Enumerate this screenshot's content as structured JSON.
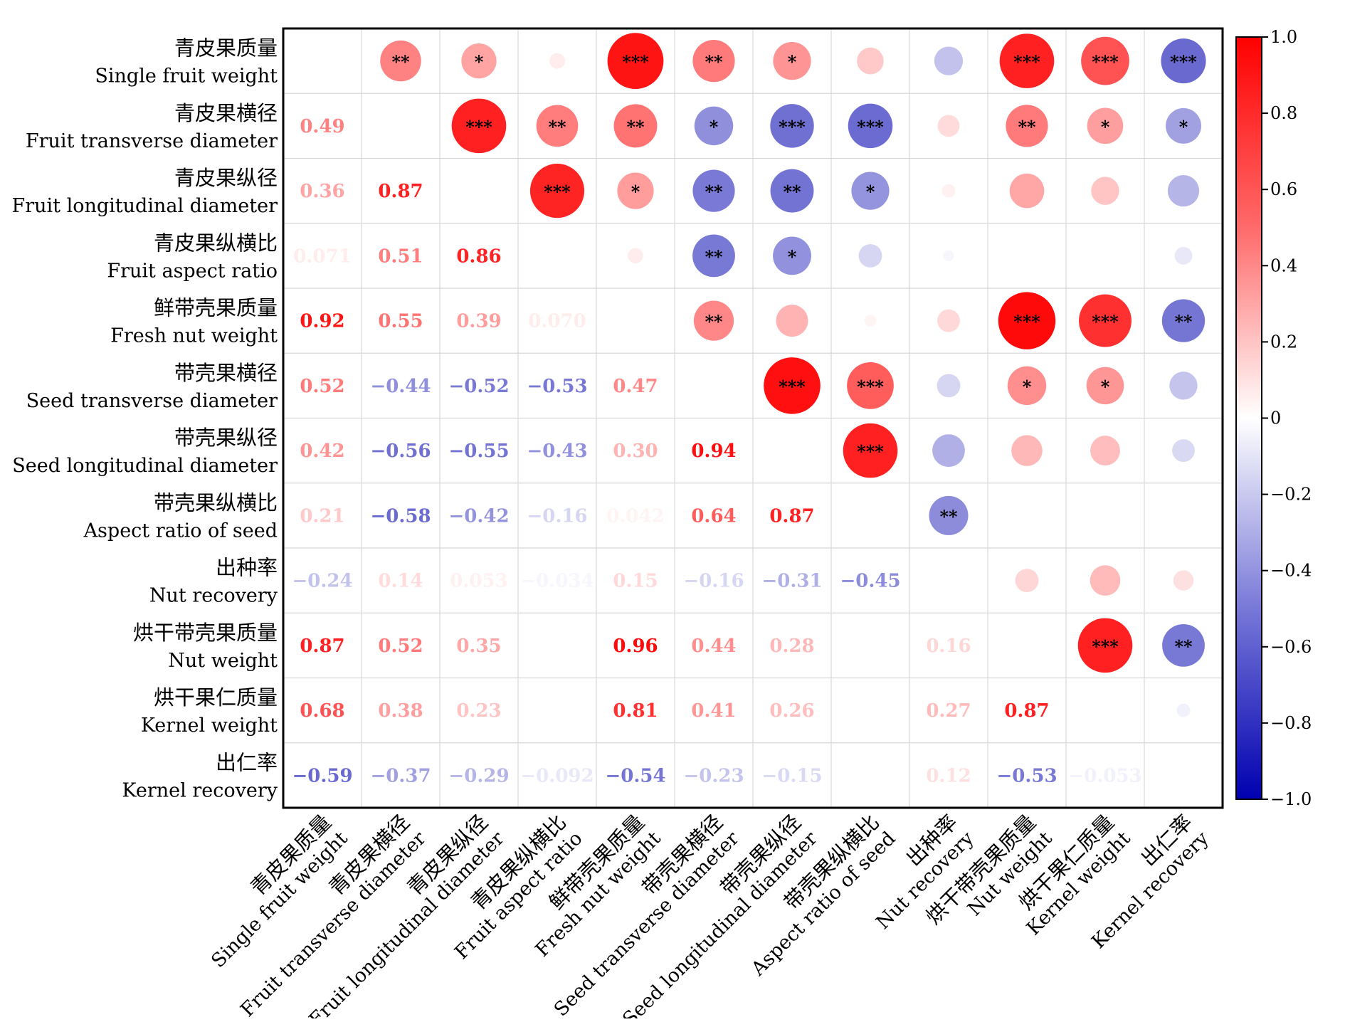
{
  "chart_data": {
    "type": "heatmap",
    "variables": [
      {
        "cn": "青皮果质量",
        "en": "Single fruit weight"
      },
      {
        "cn": "青皮果横径",
        "en": "Fruit transverse diameter"
      },
      {
        "cn": "青皮果纵径",
        "en": "Fruit longitudinal diameter"
      },
      {
        "cn": "青皮果纵横比",
        "en": "Fruit aspect ratio"
      },
      {
        "cn": "鲜带壳果质量",
        "en": "Fresh nut weight"
      },
      {
        "cn": "带壳果横径",
        "en": "Seed transverse diameter"
      },
      {
        "cn": "带壳果纵径",
        "en": "Seed longitudinal diameter"
      },
      {
        "cn": "带壳果纵横比",
        "en": "Aspect ratio of seed"
      },
      {
        "cn": "出种率",
        "en": "Nut recovery"
      },
      {
        "cn": "烘干带壳果质量",
        "en": "Nut weight"
      },
      {
        "cn": "烘干果仁质量",
        "en": "Kernel weight"
      },
      {
        "cn": "出仁率",
        "en": "Kernel recovery"
      }
    ],
    "lower_labels": [
      [],
      [
        "0.49"
      ],
      [
        "0.36",
        "0.87"
      ],
      [
        "0.071",
        "0.51",
        "0.86"
      ],
      [
        "0.92",
        "0.55",
        "0.39",
        "0.070"
      ],
      [
        "0.52",
        "−0.44",
        "−0.52",
        "−0.53",
        "0.47"
      ],
      [
        "0.42",
        "−0.56",
        "−0.55",
        "−0.43",
        "0.30",
        "0.94"
      ],
      [
        "0.21",
        "−0.58",
        "−0.42",
        "−0.16",
        "0.042",
        "0.64",
        "0.87"
      ],
      [
        "−0.24",
        "0.14",
        "0.053",
        "−0.034",
        "0.15",
        "−0.16",
        "−0.31",
        "−0.45"
      ],
      [
        "0.87",
        "0.52",
        "0.35",
        "",
        "0.96",
        "0.44",
        "0.28",
        "",
        "0.16"
      ],
      [
        "0.68",
        "0.38",
        "0.23",
        "",
        "0.81",
        "0.41",
        "0.26",
        "",
        "0.27",
        "0.87"
      ],
      [
        "−0.59",
        "−0.37",
        "−0.29",
        "−0.092",
        "−0.54",
        "−0.23",
        "−0.15",
        "",
        "0.12",
        "−0.53",
        "−0.053"
      ]
    ],
    "upper_circles": [
      {
        "row": 0,
        "col": 1,
        "r": 0.49,
        "sig": "**"
      },
      {
        "row": 0,
        "col": 2,
        "r": 0.36,
        "sig": "*"
      },
      {
        "row": 0,
        "col": 3,
        "r": 0.071,
        "sig": ""
      },
      {
        "row": 0,
        "col": 4,
        "r": 0.92,
        "sig": "***"
      },
      {
        "row": 0,
        "col": 5,
        "r": 0.52,
        "sig": "**"
      },
      {
        "row": 0,
        "col": 6,
        "r": 0.42,
        "sig": "*"
      },
      {
        "row": 0,
        "col": 7,
        "r": 0.21,
        "sig": ""
      },
      {
        "row": 0,
        "col": 8,
        "r": -0.24,
        "sig": ""
      },
      {
        "row": 0,
        "col": 9,
        "r": 0.87,
        "sig": "***"
      },
      {
        "row": 0,
        "col": 10,
        "r": 0.68,
        "sig": "***"
      },
      {
        "row": 0,
        "col": 11,
        "r": -0.59,
        "sig": "***"
      },
      {
        "row": 1,
        "col": 2,
        "r": 0.87,
        "sig": "***"
      },
      {
        "row": 1,
        "col": 3,
        "r": 0.51,
        "sig": "**"
      },
      {
        "row": 1,
        "col": 4,
        "r": 0.55,
        "sig": "**"
      },
      {
        "row": 1,
        "col": 5,
        "r": -0.44,
        "sig": "*"
      },
      {
        "row": 1,
        "col": 6,
        "r": -0.56,
        "sig": "***"
      },
      {
        "row": 1,
        "col": 7,
        "r": -0.58,
        "sig": "***"
      },
      {
        "row": 1,
        "col": 8,
        "r": 0.14,
        "sig": ""
      },
      {
        "row": 1,
        "col": 9,
        "r": 0.52,
        "sig": "**"
      },
      {
        "row": 1,
        "col": 10,
        "r": 0.38,
        "sig": "*"
      },
      {
        "row": 1,
        "col": 11,
        "r": -0.37,
        "sig": "*"
      },
      {
        "row": 2,
        "col": 3,
        "r": 0.86,
        "sig": "***"
      },
      {
        "row": 2,
        "col": 4,
        "r": 0.39,
        "sig": "*"
      },
      {
        "row": 2,
        "col": 5,
        "r": -0.52,
        "sig": "**"
      },
      {
        "row": 2,
        "col": 6,
        "r": -0.55,
        "sig": "**"
      },
      {
        "row": 2,
        "col": 7,
        "r": -0.42,
        "sig": "*"
      },
      {
        "row": 2,
        "col": 8,
        "r": 0.053,
        "sig": ""
      },
      {
        "row": 2,
        "col": 9,
        "r": 0.35,
        "sig": ""
      },
      {
        "row": 2,
        "col": 10,
        "r": 0.23,
        "sig": ""
      },
      {
        "row": 2,
        "col": 11,
        "r": -0.29,
        "sig": ""
      },
      {
        "row": 3,
        "col": 4,
        "r": 0.07,
        "sig": ""
      },
      {
        "row": 3,
        "col": 5,
        "r": -0.53,
        "sig": "**"
      },
      {
        "row": 3,
        "col": 6,
        "r": -0.43,
        "sig": "*"
      },
      {
        "row": 3,
        "col": 7,
        "r": -0.16,
        "sig": ""
      },
      {
        "row": 3,
        "col": 8,
        "r": -0.034,
        "sig": ""
      },
      {
        "row": 3,
        "col": 11,
        "r": -0.092,
        "sig": ""
      },
      {
        "row": 4,
        "col": 5,
        "r": 0.47,
        "sig": "**"
      },
      {
        "row": 4,
        "col": 6,
        "r": 0.3,
        "sig": ""
      },
      {
        "row": 4,
        "col": 7,
        "r": 0.042,
        "sig": ""
      },
      {
        "row": 4,
        "col": 8,
        "r": 0.15,
        "sig": ""
      },
      {
        "row": 4,
        "col": 9,
        "r": 0.96,
        "sig": "***"
      },
      {
        "row": 4,
        "col": 10,
        "r": 0.81,
        "sig": "***"
      },
      {
        "row": 4,
        "col": 11,
        "r": -0.54,
        "sig": "**"
      },
      {
        "row": 5,
        "col": 6,
        "r": 0.94,
        "sig": "***"
      },
      {
        "row": 5,
        "col": 7,
        "r": 0.64,
        "sig": "***"
      },
      {
        "row": 5,
        "col": 8,
        "r": -0.16,
        "sig": ""
      },
      {
        "row": 5,
        "col": 9,
        "r": 0.44,
        "sig": "*"
      },
      {
        "row": 5,
        "col": 10,
        "r": 0.41,
        "sig": "*"
      },
      {
        "row": 5,
        "col": 11,
        "r": -0.23,
        "sig": ""
      },
      {
        "row": 6,
        "col": 7,
        "r": 0.87,
        "sig": "***"
      },
      {
        "row": 6,
        "col": 8,
        "r": -0.31,
        "sig": ""
      },
      {
        "row": 6,
        "col": 9,
        "r": 0.28,
        "sig": ""
      },
      {
        "row": 6,
        "col": 10,
        "r": 0.26,
        "sig": ""
      },
      {
        "row": 6,
        "col": 11,
        "r": -0.15,
        "sig": ""
      },
      {
        "row": 7,
        "col": 8,
        "r": -0.45,
        "sig": "**"
      },
      {
        "row": 8,
        "col": 9,
        "r": 0.16,
        "sig": ""
      },
      {
        "row": 8,
        "col": 10,
        "r": 0.27,
        "sig": ""
      },
      {
        "row": 8,
        "col": 11,
        "r": 0.12,
        "sig": ""
      },
      {
        "row": 9,
        "col": 10,
        "r": 0.87,
        "sig": "***"
      },
      {
        "row": 9,
        "col": 11,
        "r": -0.53,
        "sig": "**"
      },
      {
        "row": 10,
        "col": 11,
        "r": -0.053,
        "sig": ""
      }
    ],
    "colorbar": {
      "ticks": [
        "1.0",
        "0.8",
        "0.6",
        "0.4",
        "0.2",
        "0",
        "−0.2",
        "−0.4",
        "−0.6",
        "−0.8",
        "−1.0"
      ],
      "range": [
        -1,
        1
      ],
      "colors": {
        "positive": "#ff0000",
        "neutral": "#ffffff",
        "negative": "#0000b0"
      }
    }
  }
}
